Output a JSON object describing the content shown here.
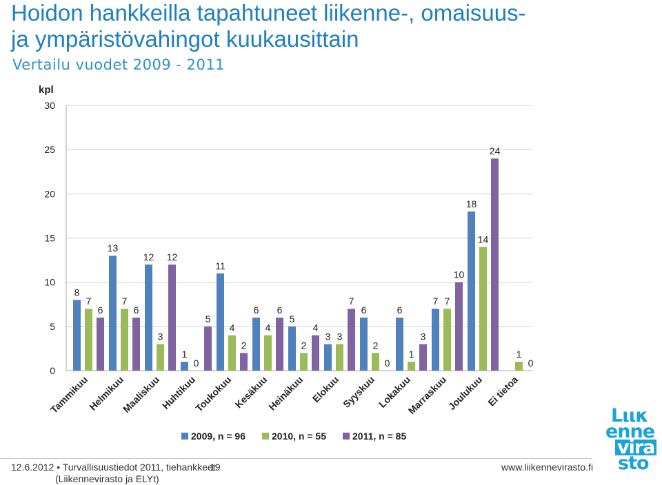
{
  "header": {
    "title_line1": "Hoidon hankkeilla tapahtuneet liikenne-, omaisuus-",
    "title_line2": "ja ympäristövahingot kuukausittain",
    "subtitle": "Vertailu vuodet 2009 - 2011"
  },
  "chart_data": {
    "type": "bar",
    "ylabel": "kpl",
    "ylim": [
      0,
      30
    ],
    "yticks": [
      0,
      5,
      10,
      15,
      20,
      25,
      30
    ],
    "grid": true,
    "legend_position": "bottom",
    "categories": [
      "Tammikuu",
      "Helmikuu",
      "Maaliskuu",
      "Huhtikuu",
      "Toukokuu",
      "Kesäkuu",
      "Heinäkuu",
      "Elokuu",
      "Syyskuu",
      "Lokakuu",
      "Marraskuu",
      "Joulukuu",
      "Ei tietoa"
    ],
    "series": [
      {
        "name": "2009, n = 96",
        "color": "#4f81bd",
        "values": [
          8,
          13,
          12,
          1,
          11,
          6,
          5,
          3,
          6,
          6,
          7,
          18,
          0
        ],
        "labels": [
          "8",
          "13",
          "12",
          "1",
          "11",
          "6",
          "5",
          "3",
          "6",
          "6",
          "7",
          "18",
          ""
        ]
      },
      {
        "name": "2010, n = 55",
        "color": "#9bbb59",
        "values": [
          7,
          7,
          3,
          0,
          4,
          4,
          2,
          3,
          2,
          1,
          7,
          14,
          1
        ],
        "labels": [
          "7",
          "7",
          "3",
          "0",
          "4",
          "4",
          "2",
          "3",
          "2",
          "1",
          "7",
          "14",
          "1"
        ]
      },
      {
        "name": "2011, n = 85",
        "color": "#8064a2",
        "values": [
          6,
          6,
          12,
          5,
          2,
          6,
          4,
          7,
          0,
          3,
          10,
          24,
          0
        ],
        "labels": [
          "6",
          "6",
          "12",
          "5",
          "2",
          "6",
          "4",
          "7",
          "0",
          "3",
          "10",
          "24",
          "0"
        ]
      }
    ]
  },
  "footer": {
    "date": "12.6.2012",
    "source_line1": "Turvallisuustiedot 2011, tiehankkeet",
    "source_line2": "(Liikennevirasto ja ELYt)",
    "page_number": "19",
    "url": "www.liikennevirasto.fi"
  },
  "logo": {
    "line1": "Lιικ",
    "line2": "enne",
    "line3": "vira",
    "line4": "sto",
    "color": "#1aa3d9"
  }
}
